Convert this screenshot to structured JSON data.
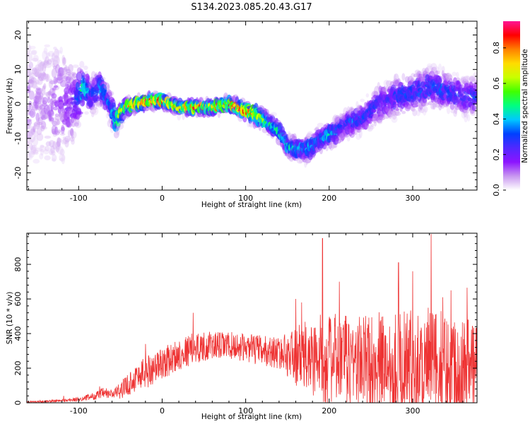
{
  "figure": {
    "title": "S134.2023.085.20.43.G17"
  },
  "chart_data": [
    {
      "type": "heatmap",
      "xlabel": "Height of straight line (km)",
      "ylabel": "Frequency (Hz)",
      "xlim": [
        -162,
        377
      ],
      "ylim": [
        -25,
        24
      ],
      "x_ticks": [
        -100,
        0,
        100,
        200,
        300
      ],
      "y_ticks": [
        -20,
        -10,
        0,
        10,
        20
      ],
      "grid": false,
      "colorbar": {
        "label": "Normalized spectral amplitude",
        "range": [
          0.0,
          0.95
        ],
        "ticks": [
          "0.0",
          "0.2",
          "0.4",
          "0.6",
          "0.8"
        ],
        "tick_values": [
          0.0,
          0.2,
          0.4,
          0.6,
          0.8
        ],
        "colormap": [
          "#ffffff",
          "#c896f0",
          "#8c14ff",
          "#5028ff",
          "#0040ff",
          "#00c8ff",
          "#00ff80",
          "#40ff00",
          "#c8ff00",
          "#ffdc00",
          "#ff8000",
          "#ff0000",
          "#ff1493"
        ]
      },
      "ridge": {
        "description_points_x": [
          -162,
          -140,
          -120,
          -105,
          -95,
          -85,
          -75,
          -65,
          -55,
          -45,
          -30,
          -10,
          0,
          10,
          20,
          40,
          60,
          80,
          100,
          110,
          120,
          130,
          140,
          150,
          160,
          175,
          190,
          200,
          210,
          220,
          230,
          240,
          250,
          260,
          270,
          280,
          300,
          320,
          340,
          360,
          377
        ],
        "frequency_hz": [
          0,
          0,
          0,
          0,
          5,
          2,
          5,
          1,
          -5,
          -1,
          0,
          1,
          1,
          0,
          -1,
          -1,
          -1,
          0,
          -2,
          -3,
          -4,
          -6,
          -8,
          -12,
          -13,
          -13,
          -10,
          -9,
          -8,
          -6,
          -5,
          -4,
          -2,
          0,
          1,
          2,
          3,
          5,
          4,
          2,
          2
        ],
        "peak_amplitude": [
          0.1,
          0.1,
          0.15,
          0.2,
          0.5,
          0.3,
          0.4,
          0.3,
          0.5,
          0.7,
          0.85,
          0.8,
          0.85,
          0.7,
          0.75,
          0.8,
          0.8,
          0.85,
          0.9,
          0.8,
          0.6,
          0.5,
          0.45,
          0.45,
          0.4,
          0.4,
          0.35,
          0.4,
          0.35,
          0.3,
          0.35,
          0.3,
          0.3,
          0.3,
          0.25,
          0.3,
          0.3,
          0.35,
          0.3,
          0.25,
          0.3
        ],
        "spread_hz": [
          22,
          22,
          20,
          12,
          6,
          6,
          5,
          5,
          4,
          2.5,
          2,
          2,
          2,
          2,
          2,
          2,
          2,
          2,
          2.5,
          3,
          3,
          3,
          3,
          3,
          3.5,
          4,
          4,
          4,
          4,
          4,
          4,
          5,
          5,
          6,
          6,
          6,
          6,
          6,
          6,
          6,
          6
        ]
      }
    },
    {
      "type": "line",
      "xlabel": "Height of straight line (km)",
      "ylabel": "SNR (10 * v/v)",
      "xlim": [
        -162,
        377
      ],
      "ylim": [
        0,
        980
      ],
      "x_ticks": [
        -100,
        0,
        100,
        200,
        300
      ],
      "y_ticks": [
        0,
        200,
        400,
        600,
        800
      ],
      "grid": false,
      "series": [
        {
          "color": "#ee3333",
          "envelope_x": [
            -162,
            -140,
            -120,
            -100,
            -90,
            -80,
            -70,
            -60,
            -50,
            -40,
            -30,
            -20,
            -10,
            0,
            10,
            20,
            30,
            40,
            60,
            80,
            100,
            120,
            140,
            150,
            160,
            170,
            180,
            190,
            200,
            220,
            240,
            260,
            280,
            300,
            320,
            340,
            360,
            377
          ],
          "envelope_mean": [
            5,
            8,
            12,
            20,
            30,
            40,
            55,
            50,
            70,
            110,
            150,
            180,
            200,
            230,
            250,
            280,
            300,
            320,
            330,
            330,
            320,
            300,
            290,
            280,
            270,
            260,
            260,
            260,
            250,
            250,
            240,
            240,
            230,
            230,
            230,
            220,
            220,
            220
          ],
          "envelope_spread": [
            5,
            6,
            8,
            10,
            15,
            20,
            30,
            25,
            40,
            60,
            70,
            90,
            80,
            80,
            80,
            80,
            80,
            80,
            70,
            70,
            70,
            80,
            80,
            110,
            150,
            180,
            200,
            220,
            230,
            230,
            240,
            250,
            260,
            270,
            280,
            270,
            260,
            250
          ],
          "peaks": [
            {
              "x": -118,
              "y": 40
            },
            {
              "x": -75,
              "y": 95
            },
            {
              "x": -20,
              "y": 340
            },
            {
              "x": 37,
              "y": 520
            },
            {
              "x": 160,
              "y": 600
            },
            {
              "x": 167,
              "y": 580
            },
            {
              "x": 192,
              "y": 950
            },
            {
              "x": 212,
              "y": 700
            },
            {
              "x": 283,
              "y": 810
            },
            {
              "x": 300,
              "y": 760
            },
            {
              "x": 322,
              "y": 975
            },
            {
              "x": 336,
              "y": 610
            },
            {
              "x": 346,
              "y": 650
            },
            {
              "x": 365,
              "y": 665
            }
          ]
        }
      ]
    }
  ]
}
